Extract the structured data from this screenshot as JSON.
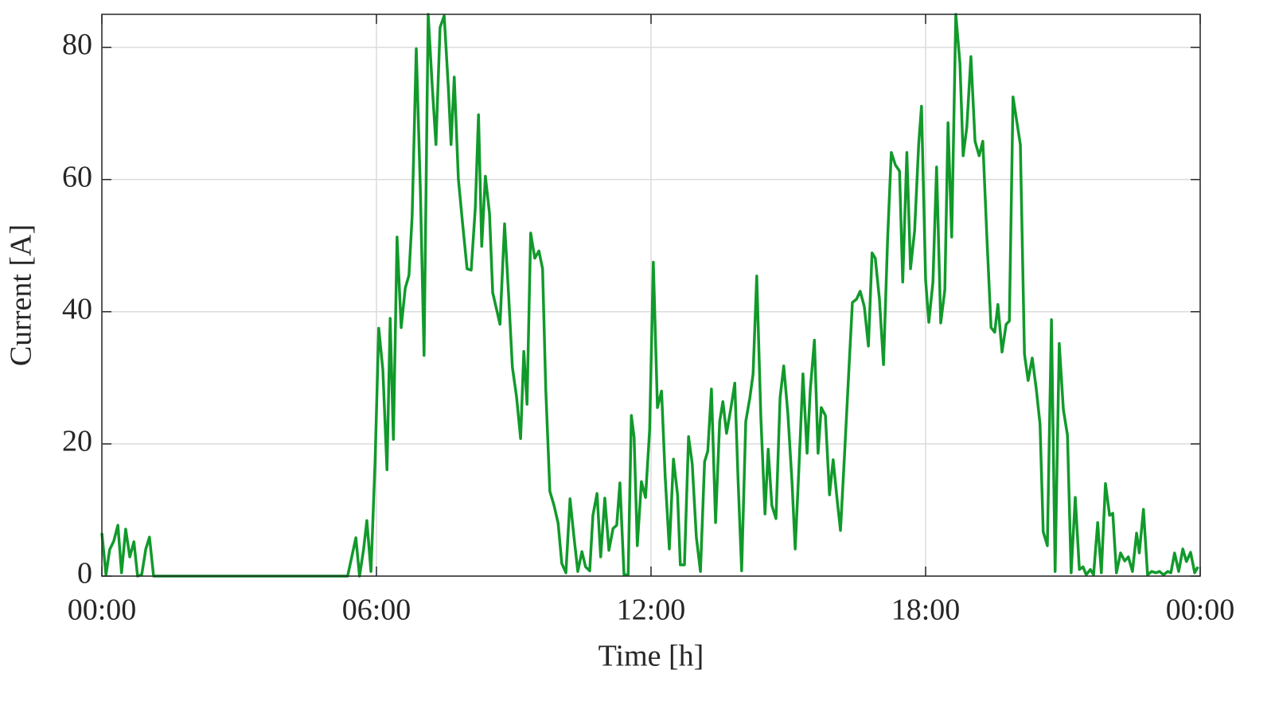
{
  "chart_data": {
    "type": "line",
    "x_label": "Time [h]",
    "y_label": "Current [A]",
    "color": "#119a2b",
    "grid": true,
    "xlim": [
      0,
      24
    ],
    "ylim": [
      0,
      85
    ],
    "xticks": [
      {
        "value": 0,
        "label": "00:00"
      },
      {
        "value": 6,
        "label": "06:00"
      },
      {
        "value": 12,
        "label": "12:00"
      },
      {
        "value": 18,
        "label": "18:00"
      },
      {
        "value": 24,
        "label": "00:00"
      }
    ],
    "yticks": [
      0,
      20,
      40,
      60,
      80
    ],
    "x": [
      0,
      0.09,
      0.17,
      0.26,
      0.35,
      0.43,
      0.52,
      0.61,
      0.7,
      0.78,
      0.87,
      0.96,
      1.04,
      1.13,
      5.37,
      5.46,
      5.55,
      5.63,
      5.72,
      5.79,
      5.88,
      5.97,
      6.05,
      6.14,
      6.23,
      6.3,
      6.37,
      6.45,
      6.54,
      6.63,
      6.71,
      6.78,
      6.87,
      6.96,
      7.04,
      7.13,
      7.22,
      7.3,
      7.39,
      7.48,
      7.57,
      7.63,
      7.7,
      7.79,
      7.88,
      7.98,
      8.07,
      8.16,
      8.23,
      8.3,
      8.38,
      8.47,
      8.54,
      8.7,
      8.8,
      8.89,
      8.97,
      9.06,
      9.15,
      9.22,
      9.29,
      9.37,
      9.46,
      9.55,
      9.63,
      9.7,
      9.79,
      9.88,
      9.97,
      10.05,
      10.14,
      10.23,
      10.31,
      10.4,
      10.49,
      10.57,
      10.66,
      10.73,
      10.82,
      10.9,
      10.99,
      11.08,
      11.17,
      11.25,
      11.32,
      11.41,
      11.5,
      11.57,
      11.63,
      11.7,
      11.79,
      11.88,
      11.97,
      12.05,
      12.14,
      12.23,
      12.31,
      12.4,
      12.49,
      12.58,
      12.64,
      12.73,
      12.82,
      12.9,
      12.99,
      13.08,
      13.17,
      13.24,
      13.32,
      13.41,
      13.5,
      13.57,
      13.65,
      13.74,
      13.83,
      13.9,
      13.98,
      14.07,
      14.16,
      14.23,
      14.31,
      14.4,
      14.49,
      14.56,
      14.64,
      14.73,
      14.82,
      14.9,
      14.99,
      15.08,
      15.15,
      15.23,
      15.32,
      15.41,
      15.48,
      15.57,
      15.65,
      15.72,
      15.81,
      15.9,
      15.98,
      16.07,
      16.14,
      16.23,
      16.31,
      16.4,
      16.49,
      16.57,
      16.66,
      16.75,
      16.83,
      16.9,
      16.99,
      17.08,
      17.17,
      17.25,
      17.34,
      17.43,
      17.5,
      17.59,
      17.67,
      17.76,
      17.85,
      17.91,
      18,
      18.07,
      18.16,
      18.24,
      18.33,
      18.42,
      18.49,
      18.57,
      18.66,
      18.75,
      18.82,
      18.9,
      18.99,
      19.08,
      19.17,
      19.25,
      19.34,
      19.43,
      19.51,
      19.58,
      19.67,
      19.76,
      19.83,
      19.91,
      20.07,
      20.16,
      20.24,
      20.33,
      20.42,
      20.5,
      20.57,
      20.66,
      20.75,
      20.83,
      20.92,
      21.01,
      21.1,
      21.18,
      21.27,
      21.36,
      21.44,
      21.51,
      21.6,
      21.67,
      21.76,
      21.84,
      21.93,
      22.02,
      22.09,
      22.17,
      22.26,
      22.35,
      22.43,
      22.52,
      22.61,
      22.67,
      22.76,
      22.85,
      22.94,
      23.03,
      23.11,
      23.2,
      23.29,
      23.36,
      23.44,
      23.53,
      23.62,
      23.7,
      23.79,
      23.88,
      23.95
    ],
    "values": [
      6.5,
      0.2,
      4,
      5.3,
      7.7,
      0.5,
      7.1,
      2.9,
      5.2,
      0,
      0.2,
      4.1,
      5.9,
      0,
      0,
      2.9,
      5.8,
      0,
      4.1,
      8.4,
      0.7,
      17.3,
      37.5,
      31.2,
      16.1,
      39,
      20.7,
      51.3,
      37.6,
      43.6,
      45.5,
      54.5,
      79.8,
      58.3,
      33.4,
      85,
      74,
      65.3,
      83,
      84.8,
      74,
      65.3,
      75.5,
      60.1,
      53.5,
      46.5,
      46.3,
      55.7,
      69.8,
      49.9,
      60.5,
      54.9,
      42.9,
      38.1,
      53.3,
      42.3,
      31.6,
      27.2,
      20.8,
      34,
      26,
      51.9,
      48.1,
      49.2,
      46.5,
      28.2,
      12.8,
      10.7,
      8,
      1.9,
      0.5,
      11.7,
      6.3,
      0.7,
      3.7,
      1.4,
      0.8,
      9.2,
      12.5,
      2.9,
      11.8,
      3.9,
      7.2,
      7.7,
      14.1,
      0.2,
      0.2,
      24.3,
      21,
      4.6,
      14.3,
      11.9,
      22.2,
      47.5,
      25.5,
      28,
      14.9,
      4.1,
      17.7,
      12.3,
      1.7,
      1.7,
      21.1,
      17,
      5.9,
      0.7,
      17.3,
      18.9,
      28.3,
      8.1,
      23.4,
      26.4,
      21.6,
      25.2,
      29.2,
      14.9,
      0.8,
      23.4,
      27,
      30.6,
      45.4,
      24,
      9.4,
      19.2,
      10.7,
      8.7,
      27,
      31.8,
      24.6,
      14.3,
      4.1,
      16.1,
      30.6,
      18.6,
      28.2,
      35.7,
      18.6,
      25.5,
      24.3,
      12.3,
      17.6,
      11.3,
      6.9,
      18.6,
      29.4,
      41.4,
      41.9,
      43.1,
      40.8,
      34.8,
      48.9,
      48.1,
      42,
      32,
      51.1,
      64.1,
      62.2,
      61.3,
      44.5,
      64.1,
      46.5,
      52.3,
      65.5,
      71.1,
      44.8,
      38.4,
      44.5,
      61.9,
      38.3,
      43.3,
      68.6,
      51.3,
      85,
      77.6,
      63.6,
      67.9,
      78.6,
      65.8,
      63.6,
      65.8,
      51.1,
      37.6,
      36.9,
      41.1,
      33.9,
      38.1,
      38.6,
      72.5,
      65.3,
      33.6,
      29.6,
      33,
      28.2,
      23,
      6.7,
      4.6,
      38.8,
      0.7,
      35.2,
      25.2,
      21.3,
      0.5,
      11.9,
      1,
      1.4,
      0.2,
      1,
      0.2,
      8.1,
      0.5,
      14,
      9.2,
      9.5,
      0.5,
      3.5,
      2.3,
      2.9,
      0.7,
      6.5,
      3.5,
      10.1,
      0.2,
      0.7,
      0.5,
      0.7,
      0.2,
      0.7,
      0.5,
      3.5,
      0.7,
      4.1,
      2.2,
      3.6,
      0.5,
      1.4
    ]
  }
}
